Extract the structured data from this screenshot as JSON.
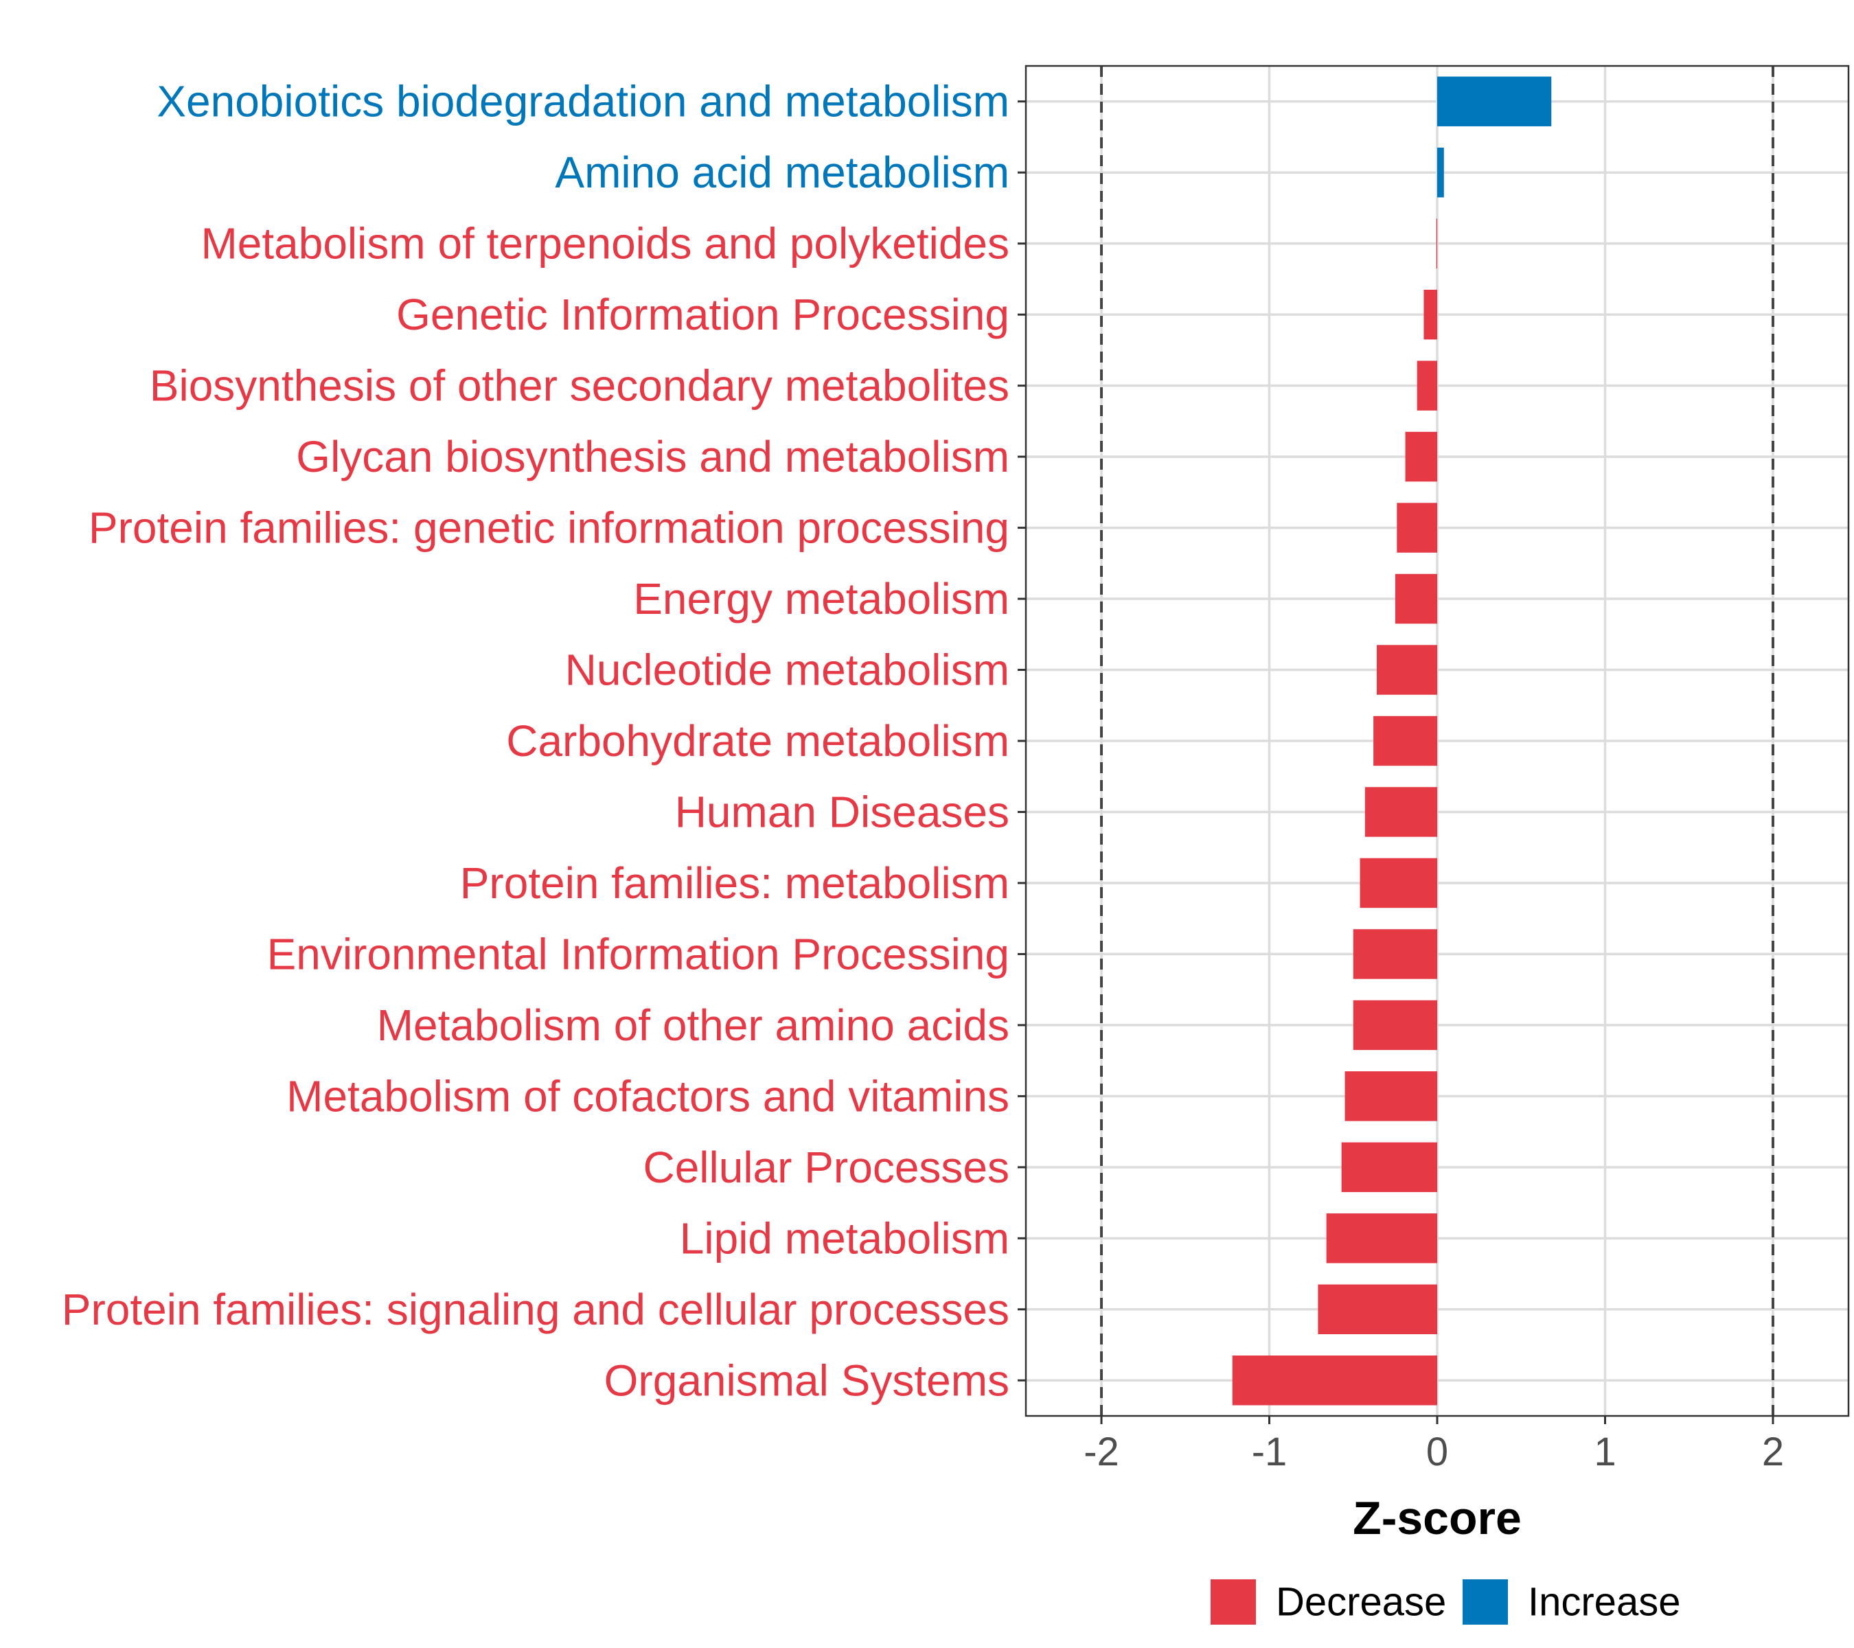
{
  "chart_data": {
    "type": "bar",
    "orientation": "horizontal",
    "xlabel": "Z-score",
    "xlim": [
      -2.45,
      2.45
    ],
    "xticks": [
      -2,
      -1,
      0,
      1,
      2
    ],
    "xtick_labels": [
      "-2",
      "-1",
      "0",
      "1",
      "2"
    ],
    "reference_lines": [
      -2,
      2
    ],
    "grid": true,
    "legend_position": "bottom",
    "colors": {
      "Decrease": "#E63946",
      "Increase": "#0077BB"
    },
    "legend": [
      {
        "name": "Decrease",
        "color": "#E63946"
      },
      {
        "name": "Increase",
        "color": "#0077BB"
      }
    ],
    "categories": [
      "Xenobiotics biodegradation and metabolism",
      "Amino acid metabolism",
      "Metabolism of terpenoids and polyketides",
      "Genetic Information Processing",
      "Biosynthesis of other secondary metabolites",
      "Glycan biosynthesis and metabolism",
      "Protein families: genetic information processing",
      "Energy metabolism",
      "Nucleotide metabolism",
      "Carbohydrate metabolism",
      "Human Diseases",
      "Protein families: metabolism",
      "Environmental Information Processing",
      "Metabolism of other amino acids",
      "Metabolism of cofactors and vitamins",
      "Cellular Processes",
      "Lipid metabolism",
      "Protein families: signaling and cellular processes",
      "Organismal Systems"
    ],
    "values": [
      0.68,
      0.04,
      -0.005,
      -0.08,
      -0.12,
      -0.19,
      -0.24,
      -0.25,
      -0.36,
      -0.38,
      -0.43,
      -0.46,
      -0.5,
      -0.5,
      -0.55,
      -0.57,
      -0.66,
      -0.71,
      -1.22
    ],
    "groups": [
      "Increase",
      "Increase",
      "Decrease",
      "Decrease",
      "Decrease",
      "Decrease",
      "Decrease",
      "Decrease",
      "Decrease",
      "Decrease",
      "Decrease",
      "Decrease",
      "Decrease",
      "Decrease",
      "Decrease",
      "Decrease",
      "Decrease",
      "Decrease",
      "Decrease"
    ]
  }
}
